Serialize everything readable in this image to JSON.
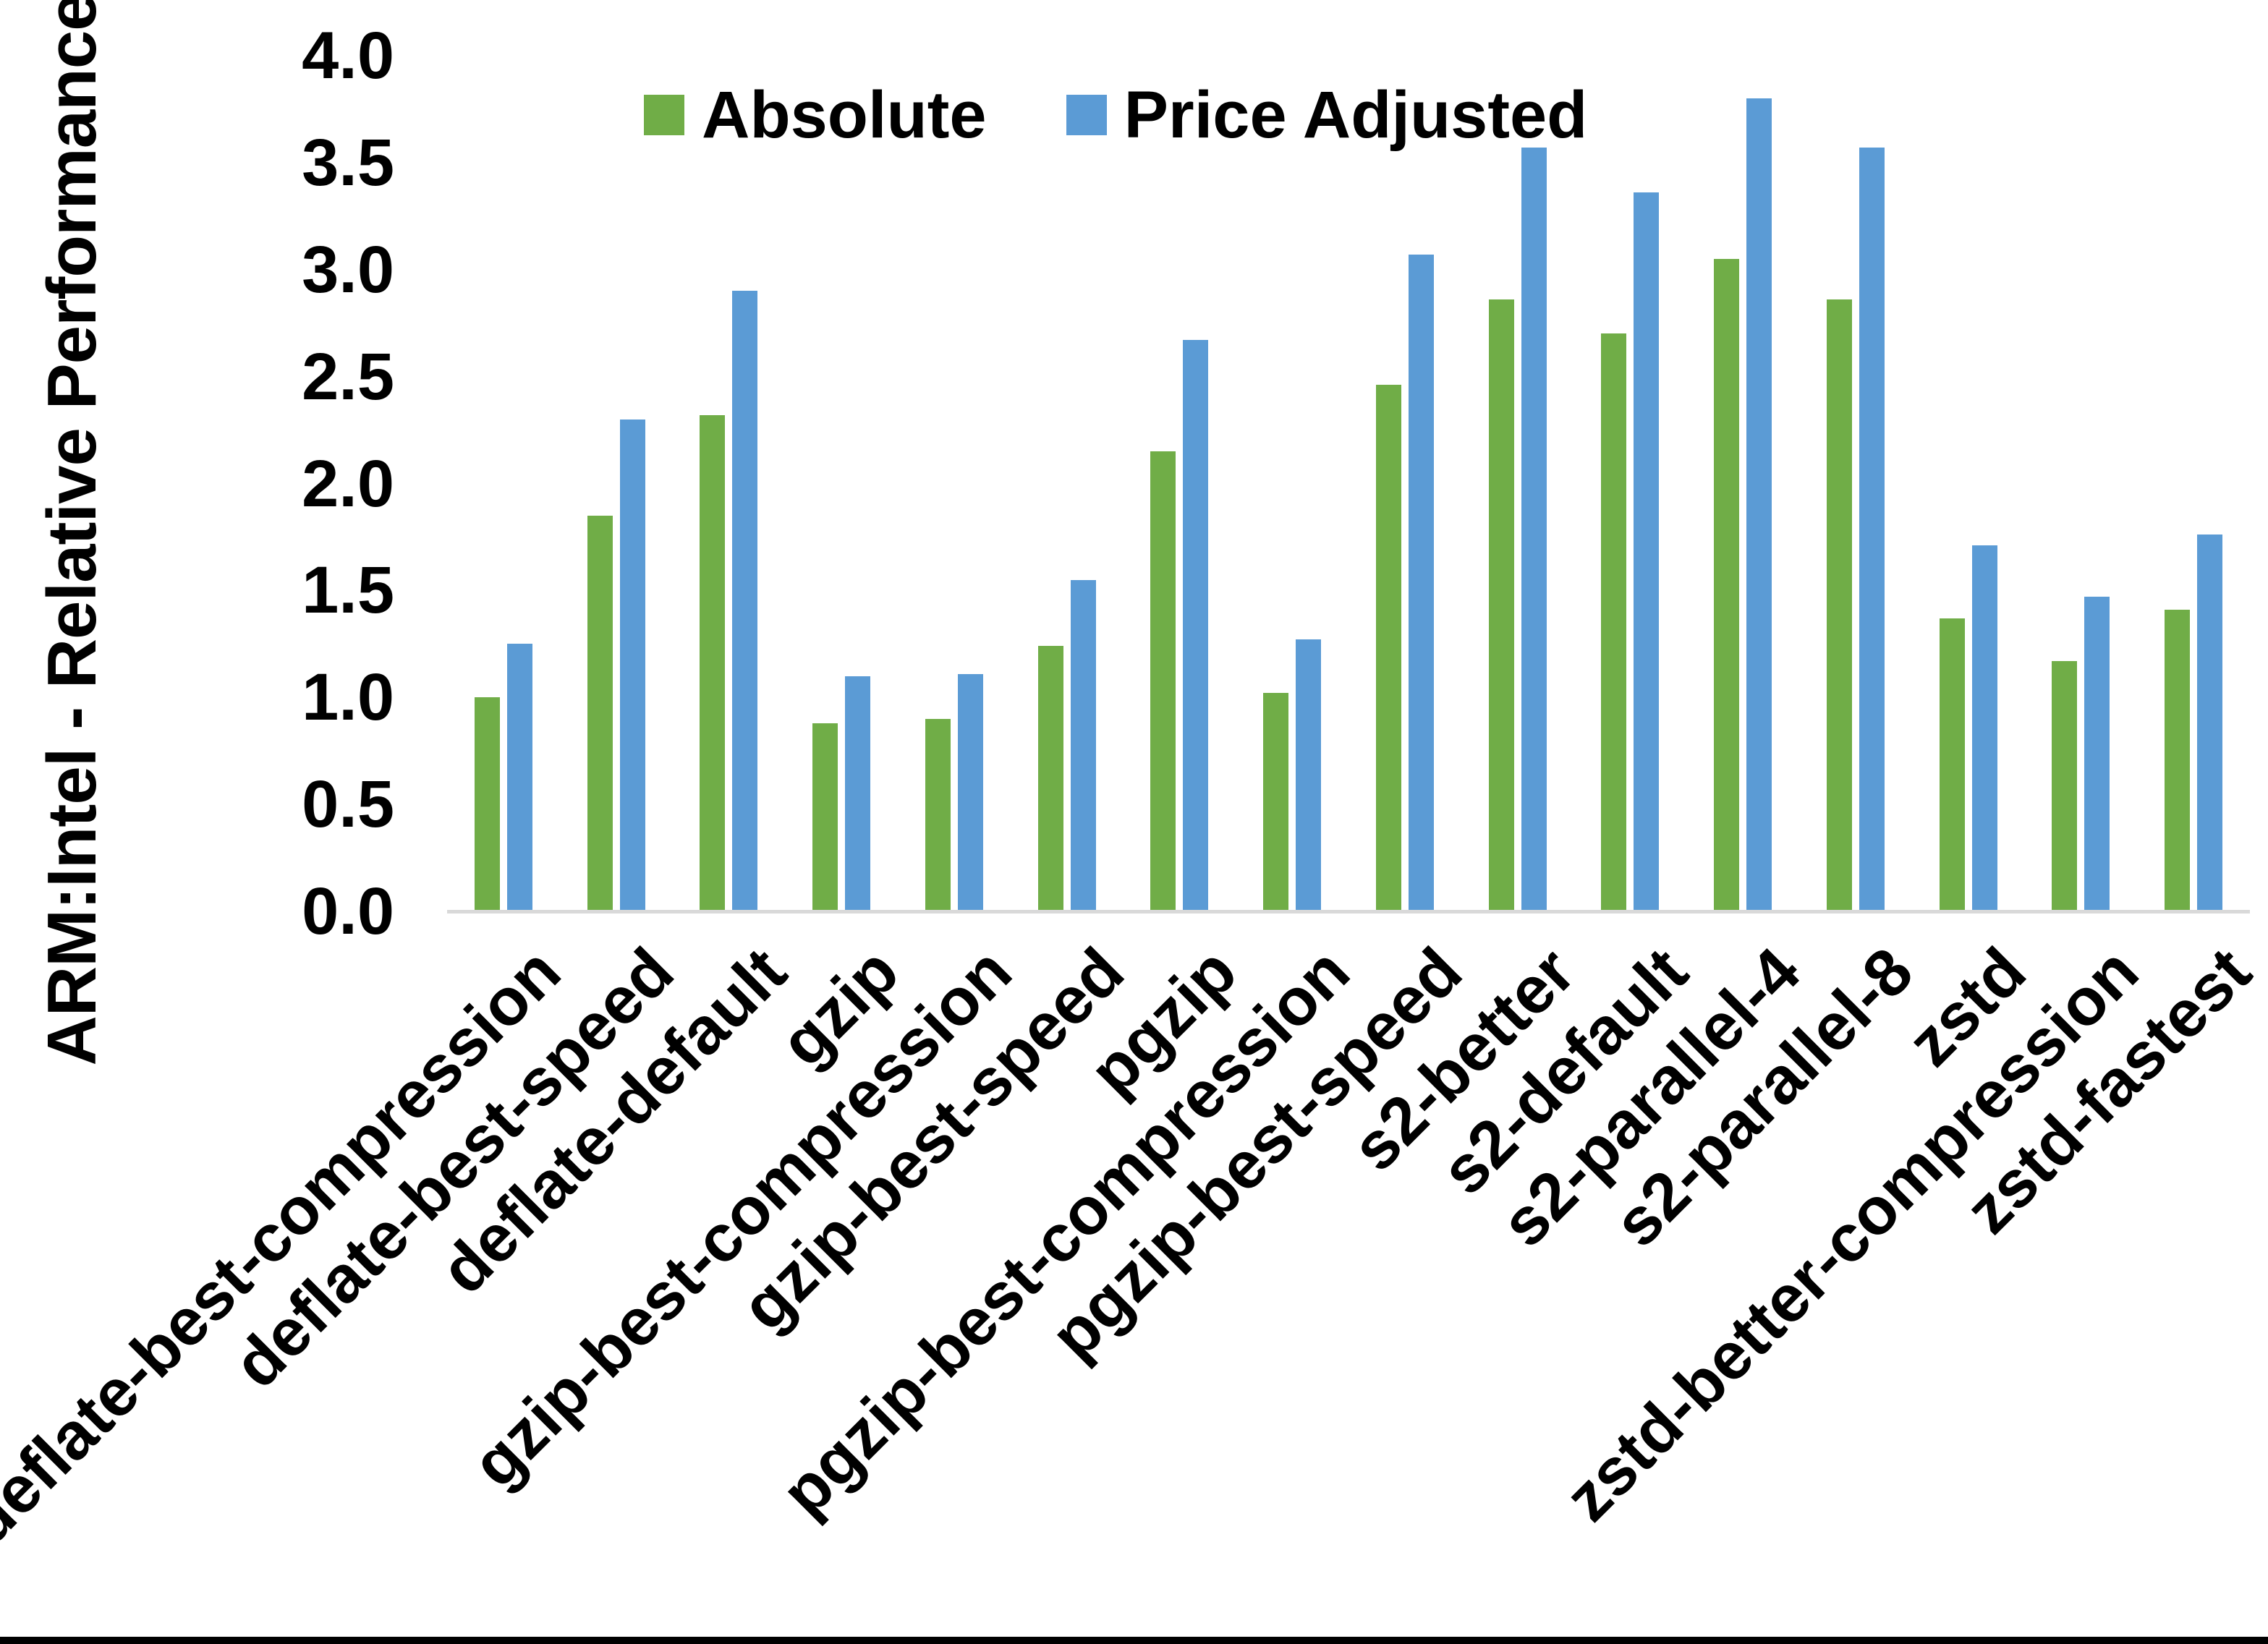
{
  "chart_data": {
    "type": "bar",
    "title": "",
    "xlabel": "",
    "ylabel": "ARM:Intel - Relative Performance",
    "ylim": [
      0,
      4
    ],
    "ytick_step": 0.5,
    "ytick_labels": [
      "0.0",
      "0.5",
      "1.0",
      "1.5",
      "2.0",
      "2.5",
      "3.0",
      "3.5",
      "4.0"
    ],
    "grid": false,
    "legend_position": "top-center",
    "background": "#FFFFFF",
    "axis_line_color": "#D9D9D9",
    "text_color": "#000000",
    "bottom_border_color": "#000000",
    "categories": [
      "deflate-best-compression",
      "deflate-best-speed",
      "deflate-default",
      "gzip",
      "gzip-best-compression",
      "gzip-best-speed",
      "pgzip",
      "pgzip-best-compression",
      "pgzip-best-speed",
      "s2-better",
      "s2-default",
      "s2-parallel-4",
      "s2-parallel-8",
      "zstd",
      "zstd-better-compression",
      "zstd-fastest"
    ],
    "series": [
      {
        "name": "Absolute",
        "color": "#70AD47",
        "values": [
          1.0,
          1.85,
          2.32,
          0.88,
          0.9,
          1.24,
          2.15,
          1.02,
          2.46,
          2.86,
          2.7,
          3.05,
          2.86,
          1.37,
          1.17,
          1.41
        ]
      },
      {
        "name": "Price Adjusted",
        "color": "#5B9BD5",
        "values": [
          1.25,
          2.3,
          2.9,
          1.1,
          1.11,
          1.55,
          2.67,
          1.27,
          3.07,
          3.57,
          3.36,
          3.8,
          3.57,
          1.71,
          1.47,
          1.76
        ]
      }
    ]
  }
}
